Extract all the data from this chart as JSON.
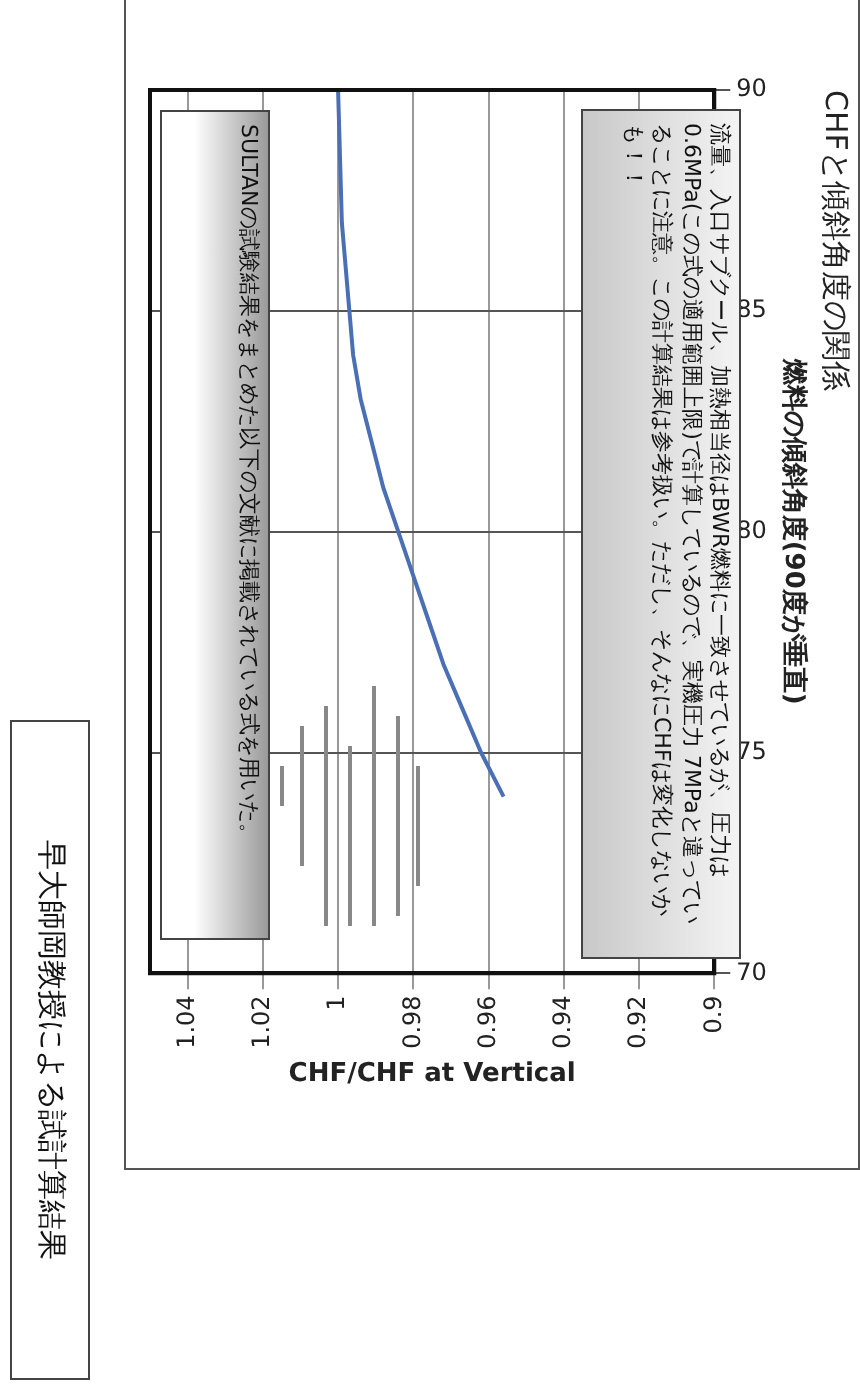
{
  "chart_data": {
    "type": "line",
    "title": "CHFと傾斜角度の関係",
    "xlabel": "CHF/CHF at Vertical",
    "ylabel": "燃料の傾斜角度(90度が垂直)",
    "x": [
      0.956,
      0.962,
      0.967,
      0.972,
      0.976,
      0.98,
      0.984,
      0.988,
      0.991,
      0.994,
      0.996,
      0.997,
      0.998,
      0.999,
      1.0
    ],
    "series": [
      {
        "color": "#4a6fb5",
        "values": [
          74,
          75,
          76,
          77,
          78,
          79,
          80,
          81,
          82,
          83,
          84,
          85,
          86,
          87,
          90
        ]
      }
    ],
    "xlim": [
      1.05,
      0.9
    ],
    "xticks": [
      0.9,
      0.92,
      0.94,
      0.96,
      0.98,
      1,
      1.02,
      1.04
    ],
    "ylim": [
      70,
      90
    ],
    "yticks": [
      70,
      75,
      80,
      85,
      90
    ],
    "grid": true,
    "marker": "none",
    "line_style": "solid",
    "annotations": [
      "SULTANの試験結果をまとめた以下の文献に掲載されている式を用いた。",
      "流量、入口サブクール、加熱相当径はBWR燃料に一致させているが、圧力は0.6MPa(この式の適用範囲上限)で計算しているので、実機圧力 7MPaと違っていることに注意。この計算結果は参考扱い。ただし、そんなにCHFは変化しないかも！！",
      "早大師岡教授による試計算結果"
    ]
  }
}
